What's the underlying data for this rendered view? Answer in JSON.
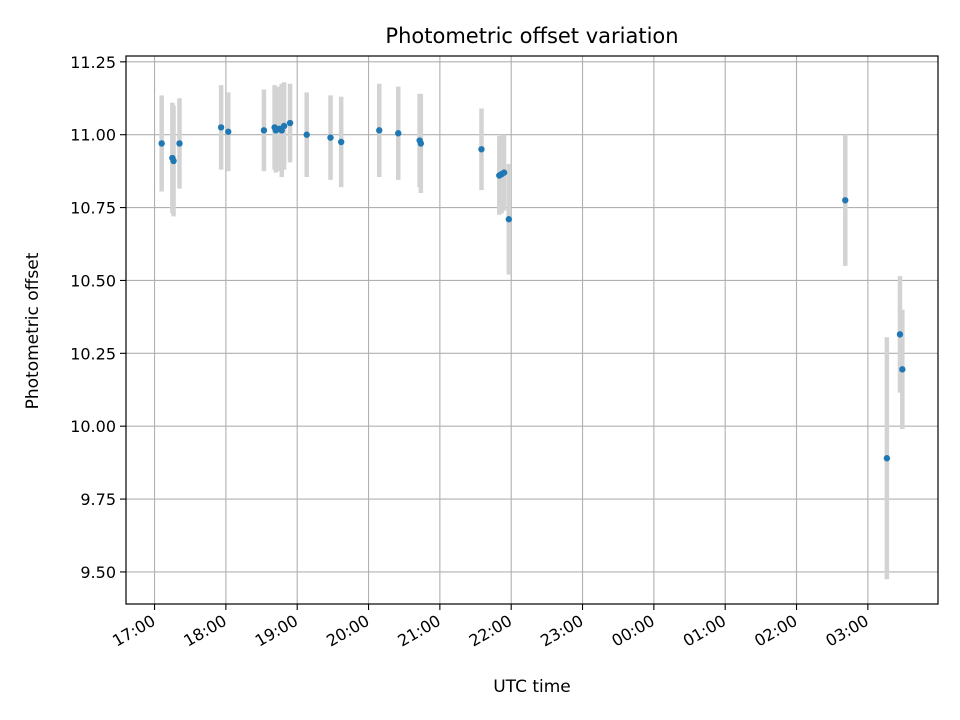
{
  "chart_data": {
    "type": "scatter",
    "title": "Photometric offset variation",
    "xlabel": "UTC time",
    "ylabel": "Photometric offset",
    "x_ticks": [
      "17:00",
      "18:00",
      "19:00",
      "20:00",
      "21:00",
      "22:00",
      "23:00",
      "00:00",
      "01:00",
      "02:00",
      "03:00"
    ],
    "y_ticks": [
      "9.50",
      "9.75",
      "10.00",
      "10.25",
      "10.50",
      "10.75",
      "11.00",
      "11.25"
    ],
    "xlim": [
      "16:36",
      "03:59"
    ],
    "ylim": [
      9.39,
      11.27
    ],
    "grid": true,
    "errorbar_color": "#d3d3d3",
    "marker_color": "#1f77b4",
    "points": [
      {
        "x": "17:06",
        "y": 10.97,
        "err": 0.165
      },
      {
        "x": "17:15",
        "y": 10.92,
        "err": 0.19
      },
      {
        "x": "17:16",
        "y": 10.91,
        "err": 0.19
      },
      {
        "x": "17:21",
        "y": 10.97,
        "err": 0.155
      },
      {
        "x": "17:56",
        "y": 11.025,
        "err": 0.145
      },
      {
        "x": "18:02",
        "y": 11.01,
        "err": 0.135
      },
      {
        "x": "18:32",
        "y": 11.015,
        "err": 0.14
      },
      {
        "x": "18:41",
        "y": 11.025,
        "err": 0.145
      },
      {
        "x": "18:42",
        "y": 11.015,
        "err": 0.145
      },
      {
        "x": "18:45",
        "y": 11.02,
        "err": 0.145
      },
      {
        "x": "18:47",
        "y": 11.015,
        "err": 0.16
      },
      {
        "x": "18:49",
        "y": 11.03,
        "err": 0.15
      },
      {
        "x": "18:54",
        "y": 11.04,
        "err": 0.135
      },
      {
        "x": "19:08",
        "y": 11.0,
        "err": 0.145
      },
      {
        "x": "19:28",
        "y": 10.99,
        "err": 0.145
      },
      {
        "x": "19:37",
        "y": 10.975,
        "err": 0.155
      },
      {
        "x": "20:09",
        "y": 11.015,
        "err": 0.16
      },
      {
        "x": "20:25",
        "y": 11.005,
        "err": 0.16
      },
      {
        "x": "20:43",
        "y": 10.98,
        "err": 0.16
      },
      {
        "x": "20:44",
        "y": 10.97,
        "err": 0.17
      },
      {
        "x": "21:35",
        "y": 10.95,
        "err": 0.14
      },
      {
        "x": "21:50",
        "y": 10.86,
        "err": 0.135
      },
      {
        "x": "21:52",
        "y": 10.865,
        "err": 0.135
      },
      {
        "x": "21:54",
        "y": 10.87,
        "err": 0.13
      },
      {
        "x": "21:58",
        "y": 10.71,
        "err": 0.19
      },
      {
        "x": "02:41",
        "y": 10.775,
        "err": 0.225
      },
      {
        "x": "03:16",
        "y": 9.89,
        "err": 0.415
      },
      {
        "x": "03:27",
        "y": 10.315,
        "err": 0.2
      },
      {
        "x": "03:29",
        "y": 10.195,
        "err": 0.205
      }
    ]
  }
}
